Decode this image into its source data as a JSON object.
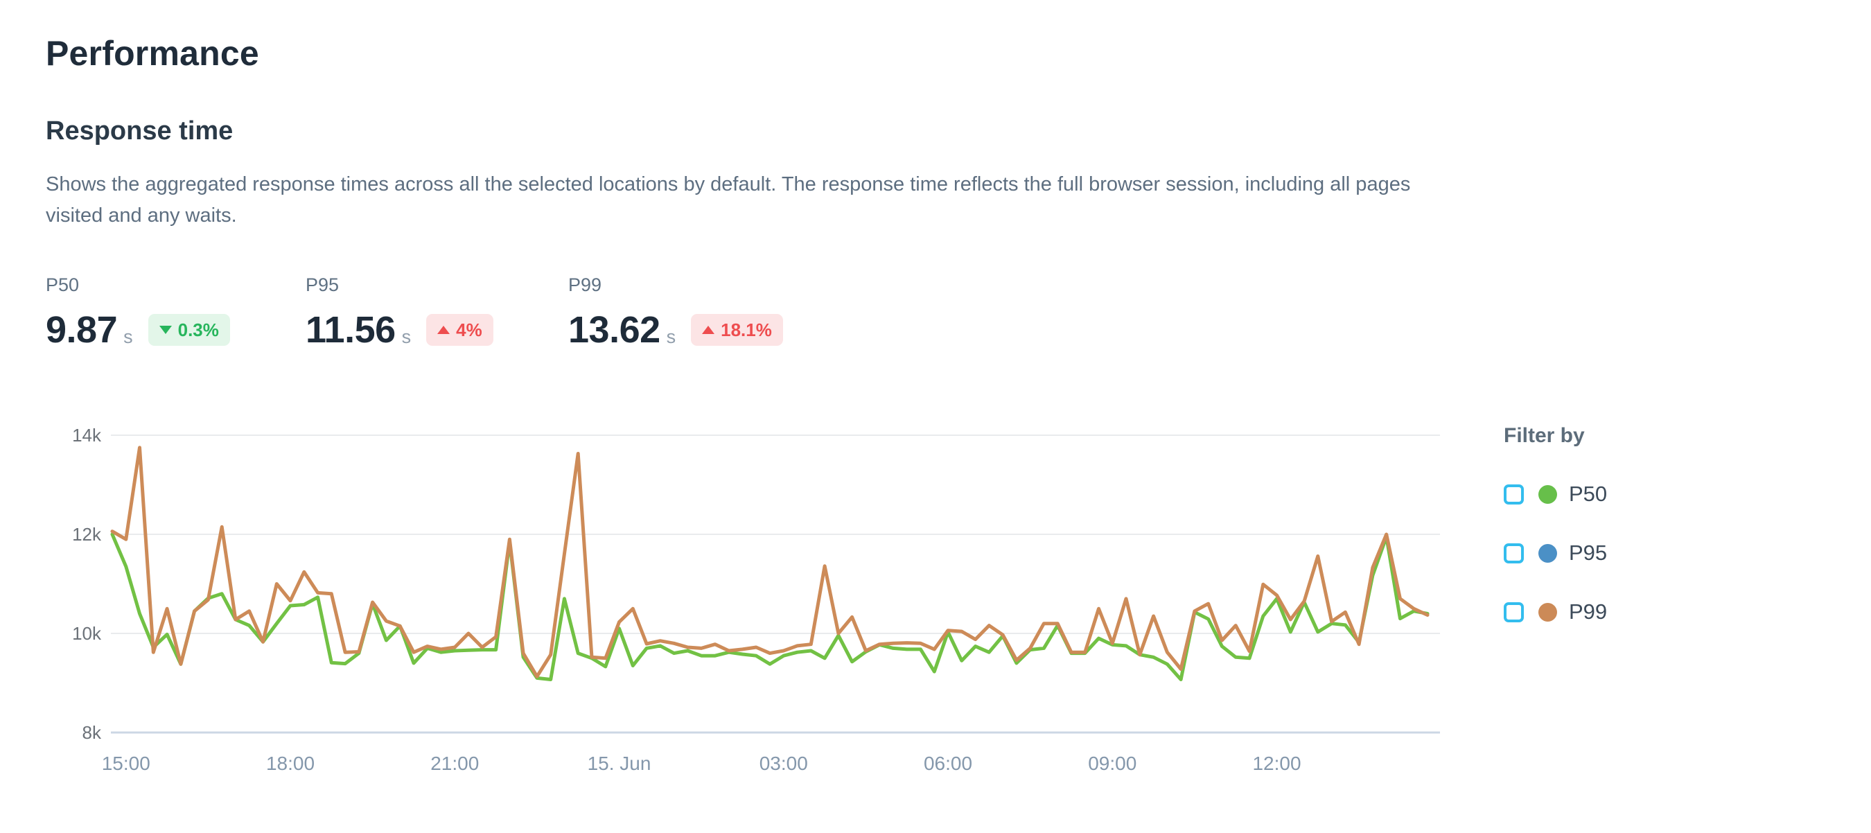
{
  "page": {
    "title": "Performance",
    "section_title": "Response time",
    "description": "Shows the aggregated response times across all the selected locations by default. The response time reflects the full browser session, including all pages visited and any waits."
  },
  "metrics": [
    {
      "label": "P50",
      "value": "9.87",
      "unit": "s",
      "delta": "0.3%",
      "direction": "down",
      "trend": "positive"
    },
    {
      "label": "P95",
      "value": "11.56",
      "unit": "s",
      "delta": "4%",
      "direction": "up",
      "trend": "negative"
    },
    {
      "label": "P99",
      "value": "13.62",
      "unit": "s",
      "delta": "18.1%",
      "direction": "up",
      "trend": "negative"
    }
  ],
  "chart_data": {
    "type": "line",
    "title": "Response time",
    "unit": "ms",
    "ylim": [
      8000,
      14000
    ],
    "y_ticks": [
      14000,
      12000,
      10000,
      8000
    ],
    "y_tick_labels": [
      "14k",
      "12k",
      "10k",
      "8k"
    ],
    "x_tick_labels": [
      "15:00",
      "18:00",
      "21:00",
      "15. Jun",
      "03:00",
      "06:00",
      "09:00",
      "12:00"
    ],
    "x_tick_point_indices": [
      1,
      13,
      25,
      37,
      49,
      61,
      73,
      85
    ],
    "point_interval_minutes": 15,
    "grid": "horizontal",
    "legend_position": "right",
    "p95_note": "P95 series is not visibly distinguishable in the plot (overlapped by the P99 line)",
    "series": [
      {
        "name": "P50",
        "color": "#72c144",
        "values": [
          12000,
          11350,
          10400,
          9720,
          9980,
          9380,
          10450,
          10710,
          10800,
          10280,
          10160,
          9830,
          10200,
          10560,
          10580,
          10730,
          9410,
          9390,
          9600,
          10600,
          9860,
          10150,
          9400,
          9700,
          9620,
          9650,
          9660,
          9670,
          9670,
          11850,
          9520,
          9100,
          9070,
          10700,
          9600,
          9500,
          9330,
          10100,
          9350,
          9700,
          9750,
          9600,
          9650,
          9550,
          9550,
          9620,
          9580,
          9550,
          9380,
          9550,
          9620,
          9650,
          9500,
          9960,
          9430,
          9630,
          9770,
          9700,
          9680,
          9680,
          9230,
          10030,
          9450,
          9740,
          9620,
          9950,
          9400,
          9670,
          9700,
          10160,
          9600,
          9600,
          9900,
          9770,
          9750,
          9570,
          9520,
          9380,
          9070,
          10430,
          10290,
          9740,
          9520,
          9500,
          10350,
          10700,
          10030,
          10630,
          10030,
          10200,
          10170,
          9820,
          11170,
          11950,
          10300,
          10450,
          10400
        ]
      },
      {
        "name": "P99",
        "color": "#cd8b58",
        "values": [
          12060,
          11900,
          13750,
          9620,
          10500,
          9380,
          10450,
          10680,
          12150,
          10280,
          10450,
          9830,
          11000,
          10660,
          11240,
          10820,
          10800,
          9620,
          9630,
          10630,
          10250,
          10150,
          9620,
          9740,
          9680,
          9720,
          10000,
          9720,
          9930,
          11900,
          9600,
          9130,
          9570,
          11600,
          13630,
          9520,
          9500,
          10230,
          10500,
          9790,
          9850,
          9800,
          9720,
          9700,
          9780,
          9650,
          9680,
          9720,
          9600,
          9650,
          9750,
          9780,
          11360,
          10000,
          10330,
          9650,
          9780,
          9800,
          9810,
          9800,
          9680,
          10060,
          10040,
          9880,
          10160,
          9970,
          9460,
          9700,
          10200,
          10200,
          9620,
          9620,
          10500,
          9800,
          10700,
          9570,
          10350,
          9620,
          9280,
          10450,
          10600,
          9860,
          10160,
          9640,
          10990,
          10770,
          10280,
          10650,
          11560,
          10240,
          10430,
          9780,
          11330,
          12000,
          10700,
          10500,
          10370
        ]
      }
    ]
  },
  "legend": {
    "title": "Filter by",
    "items": [
      {
        "label": "P50",
        "checked": false,
        "dot_color": "#67bf4a"
      },
      {
        "label": "P95",
        "checked": false,
        "dot_color": "#4b90c6"
      },
      {
        "label": "P99",
        "checked": false,
        "dot_color": "#cc8a57"
      }
    ]
  },
  "colors": {
    "title_text": "#1f2c3a",
    "body_text": "#5d6e80",
    "metric_value_text": "#1e2b39",
    "badge_positive_bg": "#e3f6e9",
    "badge_positive_text": "#27b55c",
    "badge_negative_bg": "#fce4e5",
    "badge_negative_text": "#ee4d4f",
    "gridline": "#e9ebed",
    "x_axis_line": "#ccd7e4",
    "y_tick_text": "#6b7178",
    "x_tick_text": "#8497ab",
    "checkbox_border": "#33bdee"
  }
}
